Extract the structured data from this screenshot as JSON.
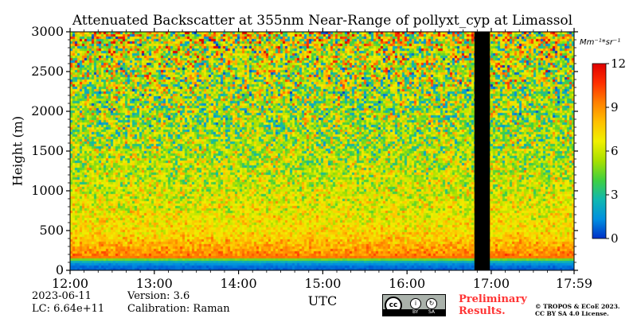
{
  "chart_data": {
    "type": "heatmap",
    "title": "Attenuated Backscatter at 355nm Near-Range of pollyxt_cyp at Limassol",
    "xlabel": "UTC",
    "ylabel": "Height (m)",
    "x_ticks": [
      "12:00",
      "13:00",
      "14:00",
      "15:00",
      "16:00",
      "17:00",
      "17:59"
    ],
    "x_range": [
      "12:00",
      "17:59"
    ],
    "y_ticks": [
      0,
      500,
      1000,
      1500,
      2000,
      2500,
      3000
    ],
    "ylim": [
      0,
      3000
    ],
    "colorbar": {
      "unit": "Mm⁻¹*sr⁻¹",
      "ticks": [
        0,
        3,
        6,
        9,
        12
      ],
      "range": [
        0,
        12
      ],
      "colormap": [
        "#0030c8",
        "#0090e0",
        "#10b8b0",
        "#40d040",
        "#a8e000",
        "#f0f000",
        "#ffc000",
        "#ff8000",
        "#ff3000",
        "#e00000"
      ]
    },
    "data_gap": {
      "start": "16:48",
      "end": "16:59"
    },
    "profile": [
      {
        "height": 0,
        "value": 0.5
      },
      {
        "height": 80,
        "value": 1.0
      },
      {
        "height": 140,
        "value": 3.0
      },
      {
        "height": 180,
        "value": 9.5
      },
      {
        "height": 300,
        "value": 8.5
      },
      {
        "height": 500,
        "value": 7.2
      },
      {
        "height": 1000,
        "value": 6.2
      },
      {
        "height": 1500,
        "value": 5.6
      },
      {
        "height": 2000,
        "value": 5.2
      },
      {
        "height": 2500,
        "value": 5.8
      },
      {
        "height": 3000,
        "value": 6.5
      }
    ]
  },
  "footer": {
    "date": "2023-06-11",
    "version": "Version: 3.6",
    "lc": "LC: 6.64e+11",
    "calibration": "Calibration: Raman",
    "preliminary_line1": "Preliminary",
    "preliminary_line2": "Results.",
    "copyright_line1": "© TROPOS & ECoE 2023.",
    "copyright_line2": "CC BY SA 4.0 License.",
    "license_badge": {
      "main": "cc",
      "by": "BY",
      "sa": "SA"
    }
  }
}
